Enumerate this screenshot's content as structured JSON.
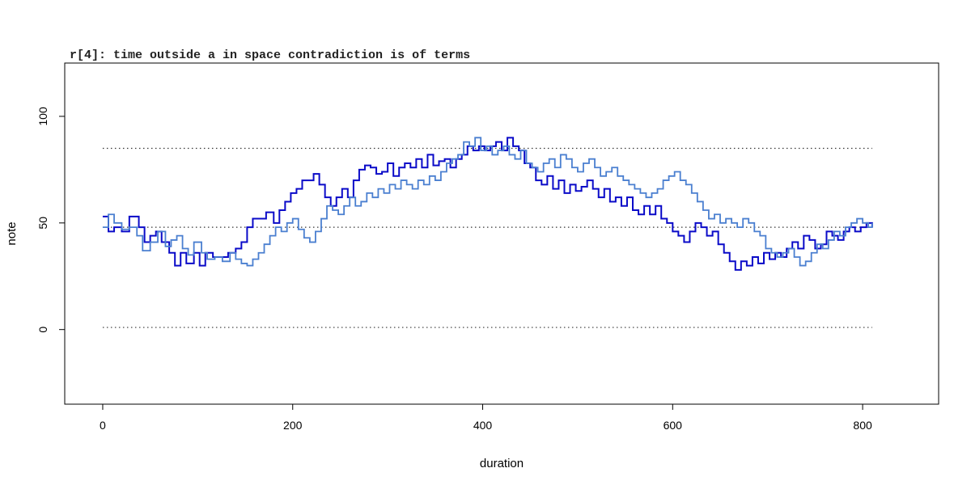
{
  "chart_data": {
    "type": "line",
    "title": "r[4]: time outside a in space contradiction is of terms",
    "xlabel": "duration",
    "ylabel": "note",
    "xlim": [
      -40,
      880
    ],
    "ylim": [
      -35,
      125
    ],
    "x_ticks": [
      0,
      200,
      400,
      600,
      800
    ],
    "y_ticks": [
      0,
      50,
      100
    ],
    "grid": false,
    "reference_lines": [
      {
        "y": 1,
        "x_range": [
          0,
          810
        ],
        "style": "dotted",
        "color": "#333333"
      },
      {
        "y": 48,
        "x_range": [
          0,
          810
        ],
        "style": "dotted",
        "color": "#333333"
      },
      {
        "y": 85,
        "x_range": [
          0,
          810
        ],
        "style": "dotted",
        "color": "#333333"
      }
    ],
    "series": [
      {
        "color": "#0a0ac8",
        "style": "step",
        "points": [
          [
            0,
            53
          ],
          [
            6,
            46
          ],
          [
            12,
            48
          ],
          [
            20,
            46
          ],
          [
            28,
            53
          ],
          [
            38,
            48
          ],
          [
            44,
            41
          ],
          [
            50,
            44
          ],
          [
            56,
            46
          ],
          [
            62,
            41
          ],
          [
            70,
            36
          ],
          [
            76,
            30
          ],
          [
            82,
            36
          ],
          [
            88,
            31
          ],
          [
            96,
            36
          ],
          [
            102,
            30
          ],
          [
            108,
            36
          ],
          [
            116,
            34
          ],
          [
            124,
            34
          ],
          [
            132,
            36
          ],
          [
            140,
            38
          ],
          [
            146,
            41
          ],
          [
            152,
            48
          ],
          [
            158,
            52
          ],
          [
            164,
            52
          ],
          [
            172,
            55
          ],
          [
            180,
            50
          ],
          [
            186,
            56
          ],
          [
            192,
            60
          ],
          [
            198,
            64
          ],
          [
            204,
            66
          ],
          [
            210,
            70
          ],
          [
            216,
            70
          ],
          [
            222,
            73
          ],
          [
            228,
            68
          ],
          [
            234,
            62
          ],
          [
            240,
            58
          ],
          [
            246,
            62
          ],
          [
            252,
            66
          ],
          [
            258,
            62
          ],
          [
            264,
            70
          ],
          [
            270,
            75
          ],
          [
            276,
            77
          ],
          [
            282,
            76
          ],
          [
            288,
            73
          ],
          [
            294,
            74
          ],
          [
            300,
            78
          ],
          [
            306,
            72
          ],
          [
            312,
            76
          ],
          [
            318,
            78
          ],
          [
            324,
            76
          ],
          [
            330,
            80
          ],
          [
            336,
            76
          ],
          [
            342,
            82
          ],
          [
            348,
            77
          ],
          [
            354,
            79
          ],
          [
            360,
            80
          ],
          [
            366,
            76
          ],
          [
            372,
            80
          ],
          [
            378,
            82
          ],
          [
            384,
            86
          ],
          [
            390,
            84
          ],
          [
            396,
            86
          ],
          [
            402,
            84
          ],
          [
            408,
            86
          ],
          [
            414,
            88
          ],
          [
            420,
            84
          ],
          [
            426,
            90
          ],
          [
            432,
            86
          ],
          [
            438,
            84
          ],
          [
            444,
            78
          ],
          [
            450,
            76
          ],
          [
            456,
            70
          ],
          [
            462,
            68
          ],
          [
            468,
            72
          ],
          [
            474,
            66
          ],
          [
            480,
            70
          ],
          [
            486,
            64
          ],
          [
            492,
            68
          ],
          [
            498,
            65
          ],
          [
            504,
            67
          ],
          [
            510,
            70
          ],
          [
            516,
            66
          ],
          [
            522,
            62
          ],
          [
            528,
            66
          ],
          [
            534,
            60
          ],
          [
            540,
            62
          ],
          [
            546,
            58
          ],
          [
            552,
            62
          ],
          [
            558,
            56
          ],
          [
            564,
            54
          ],
          [
            570,
            58
          ],
          [
            576,
            54
          ],
          [
            582,
            58
          ],
          [
            588,
            52
          ],
          [
            594,
            50
          ],
          [
            600,
            46
          ],
          [
            606,
            44
          ],
          [
            612,
            41
          ],
          [
            618,
            46
          ],
          [
            624,
            50
          ],
          [
            630,
            48
          ],
          [
            636,
            44
          ],
          [
            642,
            46
          ],
          [
            648,
            40
          ],
          [
            654,
            36
          ],
          [
            660,
            32
          ],
          [
            666,
            28
          ],
          [
            672,
            32
          ],
          [
            678,
            30
          ],
          [
            684,
            34
          ],
          [
            690,
            31
          ],
          [
            696,
            36
          ],
          [
            702,
            33
          ],
          [
            708,
            36
          ],
          [
            714,
            34
          ],
          [
            720,
            38
          ],
          [
            726,
            41
          ],
          [
            732,
            38
          ],
          [
            738,
            44
          ],
          [
            744,
            42
          ],
          [
            750,
            38
          ],
          [
            756,
            40
          ],
          [
            762,
            46
          ],
          [
            768,
            44
          ],
          [
            774,
            42
          ],
          [
            780,
            46
          ],
          [
            786,
            48
          ],
          [
            792,
            46
          ],
          [
            798,
            48
          ],
          [
            804,
            50
          ],
          [
            810,
            48
          ]
        ]
      },
      {
        "color": "#4a7fd0",
        "style": "step",
        "points": [
          [
            0,
            48
          ],
          [
            6,
            54
          ],
          [
            12,
            50
          ],
          [
            20,
            47
          ],
          [
            28,
            48
          ],
          [
            36,
            44
          ],
          [
            42,
            37
          ],
          [
            50,
            41
          ],
          [
            58,
            46
          ],
          [
            66,
            39
          ],
          [
            72,
            42
          ],
          [
            78,
            44
          ],
          [
            84,
            38
          ],
          [
            90,
            35
          ],
          [
            96,
            41
          ],
          [
            104,
            36
          ],
          [
            110,
            33
          ],
          [
            118,
            34
          ],
          [
            126,
            32
          ],
          [
            134,
            36
          ],
          [
            140,
            33
          ],
          [
            146,
            31
          ],
          [
            152,
            30
          ],
          [
            158,
            33
          ],
          [
            164,
            36
          ],
          [
            170,
            40
          ],
          [
            176,
            44
          ],
          [
            182,
            48
          ],
          [
            188,
            46
          ],
          [
            194,
            50
          ],
          [
            200,
            52
          ],
          [
            206,
            47
          ],
          [
            212,
            43
          ],
          [
            218,
            41
          ],
          [
            224,
            46
          ],
          [
            230,
            52
          ],
          [
            236,
            58
          ],
          [
            242,
            56
          ],
          [
            248,
            54
          ],
          [
            254,
            58
          ],
          [
            260,
            62
          ],
          [
            266,
            58
          ],
          [
            272,
            60
          ],
          [
            278,
            64
          ],
          [
            284,
            62
          ],
          [
            290,
            66
          ],
          [
            296,
            64
          ],
          [
            302,
            68
          ],
          [
            308,
            66
          ],
          [
            314,
            70
          ],
          [
            320,
            68
          ],
          [
            326,
            66
          ],
          [
            332,
            70
          ],
          [
            338,
            68
          ],
          [
            344,
            72
          ],
          [
            350,
            70
          ],
          [
            356,
            74
          ],
          [
            362,
            78
          ],
          [
            368,
            80
          ],
          [
            374,
            82
          ],
          [
            380,
            88
          ],
          [
            386,
            86
          ],
          [
            392,
            90
          ],
          [
            398,
            84
          ],
          [
            404,
            86
          ],
          [
            410,
            82
          ],
          [
            416,
            84
          ],
          [
            422,
            86
          ],
          [
            428,
            82
          ],
          [
            434,
            80
          ],
          [
            440,
            84
          ],
          [
            446,
            78
          ],
          [
            452,
            76
          ],
          [
            458,
            74
          ],
          [
            464,
            78
          ],
          [
            470,
            80
          ],
          [
            476,
            76
          ],
          [
            482,
            82
          ],
          [
            488,
            80
          ],
          [
            494,
            76
          ],
          [
            500,
            74
          ],
          [
            506,
            78
          ],
          [
            512,
            80
          ],
          [
            518,
            76
          ],
          [
            524,
            72
          ],
          [
            530,
            74
          ],
          [
            536,
            76
          ],
          [
            542,
            72
          ],
          [
            548,
            70
          ],
          [
            554,
            68
          ],
          [
            560,
            66
          ],
          [
            566,
            64
          ],
          [
            572,
            62
          ],
          [
            578,
            64
          ],
          [
            584,
            66
          ],
          [
            590,
            70
          ],
          [
            596,
            72
          ],
          [
            602,
            74
          ],
          [
            608,
            70
          ],
          [
            614,
            68
          ],
          [
            620,
            64
          ],
          [
            626,
            60
          ],
          [
            632,
            56
          ],
          [
            638,
            52
          ],
          [
            644,
            54
          ],
          [
            650,
            50
          ],
          [
            656,
            52
          ],
          [
            662,
            50
          ],
          [
            668,
            48
          ],
          [
            674,
            52
          ],
          [
            680,
            50
          ],
          [
            686,
            46
          ],
          [
            692,
            44
          ],
          [
            698,
            38
          ],
          [
            704,
            36
          ],
          [
            710,
            34
          ],
          [
            716,
            36
          ],
          [
            722,
            38
          ],
          [
            728,
            34
          ],
          [
            734,
            30
          ],
          [
            740,
            32
          ],
          [
            746,
            36
          ],
          [
            752,
            40
          ],
          [
            758,
            38
          ],
          [
            764,
            42
          ],
          [
            770,
            46
          ],
          [
            776,
            44
          ],
          [
            782,
            48
          ],
          [
            788,
            50
          ],
          [
            794,
            52
          ],
          [
            800,
            50
          ],
          [
            806,
            48
          ],
          [
            810,
            50
          ]
        ]
      }
    ]
  }
}
